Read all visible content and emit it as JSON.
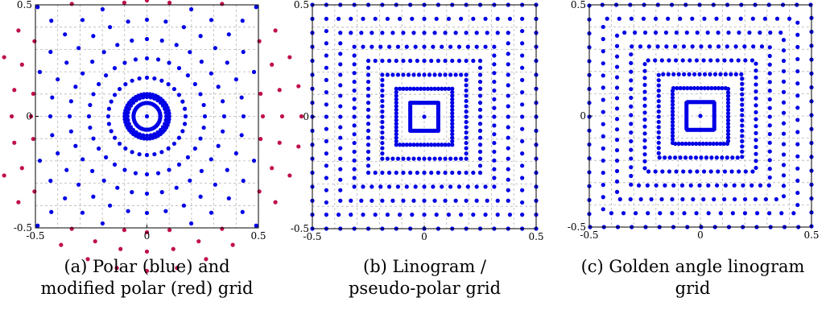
{
  "chart_data": [
    {
      "type": "scatter",
      "grid_kind": "polar",
      "xlim": [
        -0.5,
        0.5
      ],
      "ylim": [
        -0.5,
        0.5
      ],
      "xticks": [
        "-0.5",
        "0",
        "0.5"
      ],
      "yticks": [
        "0.5",
        "0",
        "-0.5"
      ],
      "grid": true,
      "rings": 8,
      "points_per_ring": 32,
      "series": [
        {
          "color": "#0000e6",
          "description": "points inside the square"
        },
        {
          "color": "#c0104a",
          "description": "points outside the square"
        }
      ],
      "caption": [
        "(a) Polar (blue) and",
        "modified polar (red) grid"
      ]
    },
    {
      "type": "scatter",
      "grid_kind": "linogram",
      "xlim": [
        -0.5,
        0.5
      ],
      "ylim": [
        -0.5,
        0.5
      ],
      "xticks": [
        "-0.5",
        "0",
        "0.5"
      ],
      "yticks": [
        "0.5",
        "0",
        "-0.5"
      ],
      "grid": true,
      "rings": 8,
      "points_per_side": 16,
      "series": [
        {
          "color": "#0000e6"
        }
      ],
      "caption": [
        "(b) Linogram /",
        "pseudo-polar grid"
      ]
    },
    {
      "type": "scatter",
      "grid_kind": "golden-linogram",
      "xlim": [
        -0.5,
        0.5
      ],
      "ylim": [
        -0.5,
        0.5
      ],
      "xticks": [
        "-0.5",
        "0",
        "0.5"
      ],
      "yticks": [
        "0.5",
        "0",
        "-0.5"
      ],
      "grid": true,
      "rings": 8,
      "points_per_side": 16,
      "series": [
        {
          "color": "#0000e6"
        }
      ],
      "caption": [
        "(c) Golden angle linogram",
        "grid"
      ]
    }
  ]
}
